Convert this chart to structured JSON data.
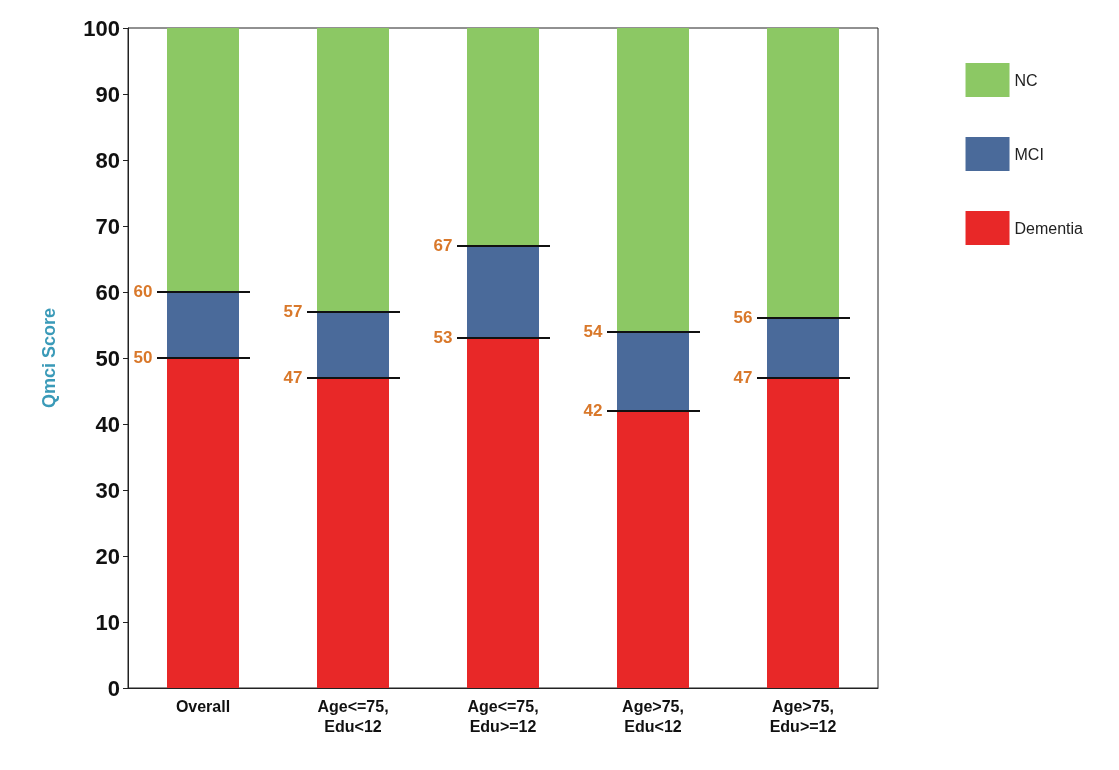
{
  "chart_data": {
    "type": "bar",
    "ylabel": "Qmci Score",
    "stacked": true,
    "categories": [
      "Overall",
      "Age<=75,\nEdu<12",
      "Age<=75,\nEdu>=12",
      "Age>75,\nEdu<12",
      "Age>75,\nEdu>=12"
    ],
    "series": [
      {
        "name": "Dementia",
        "color": "#e82828",
        "values": [
          50,
          47,
          53,
          42,
          47
        ]
      },
      {
        "name": "MCI",
        "color": "#4a6a9a",
        "values": [
          10,
          10,
          14,
          12,
          9
        ]
      },
      {
        "name": "NC",
        "color": "#8cc864",
        "values": [
          40,
          43,
          33,
          46,
          44
        ]
      }
    ],
    "ylim": [
      0,
      100
    ],
    "yticks": [
      0,
      10,
      20,
      30,
      40,
      50,
      60,
      70,
      80,
      90,
      100
    ],
    "grid": false,
    "legend": "right",
    "annotations": [
      {
        "text": "60",
        "x": "Overall",
        "y": 60
      },
      {
        "text": "50",
        "x": "Overall",
        "y": 50
      },
      {
        "text": "57",
        "x": "Age<=75,\nEdu<12",
        "y": 57
      },
      {
        "text": "47",
        "x": "Age<=75,\nEdu<12",
        "y": 47
      },
      {
        "text": "67",
        "x": "Age<=75,\nEdu>=12",
        "y": 67
      },
      {
        "text": "53",
        "x": "Age<=75,\nEdu>=12",
        "y": 53
      },
      {
        "text": "54",
        "x": "Age>75,\nEdu<12",
        "y": 54
      },
      {
        "text": "42",
        "x": "Age>75,\nEdu<12",
        "y": 42
      },
      {
        "text": "56",
        "x": "Age>75,\nEdu>=12",
        "y": 56
      },
      {
        "text": "47",
        "x": "Age>75,\nEdu>=12",
        "y": 47
      }
    ]
  }
}
